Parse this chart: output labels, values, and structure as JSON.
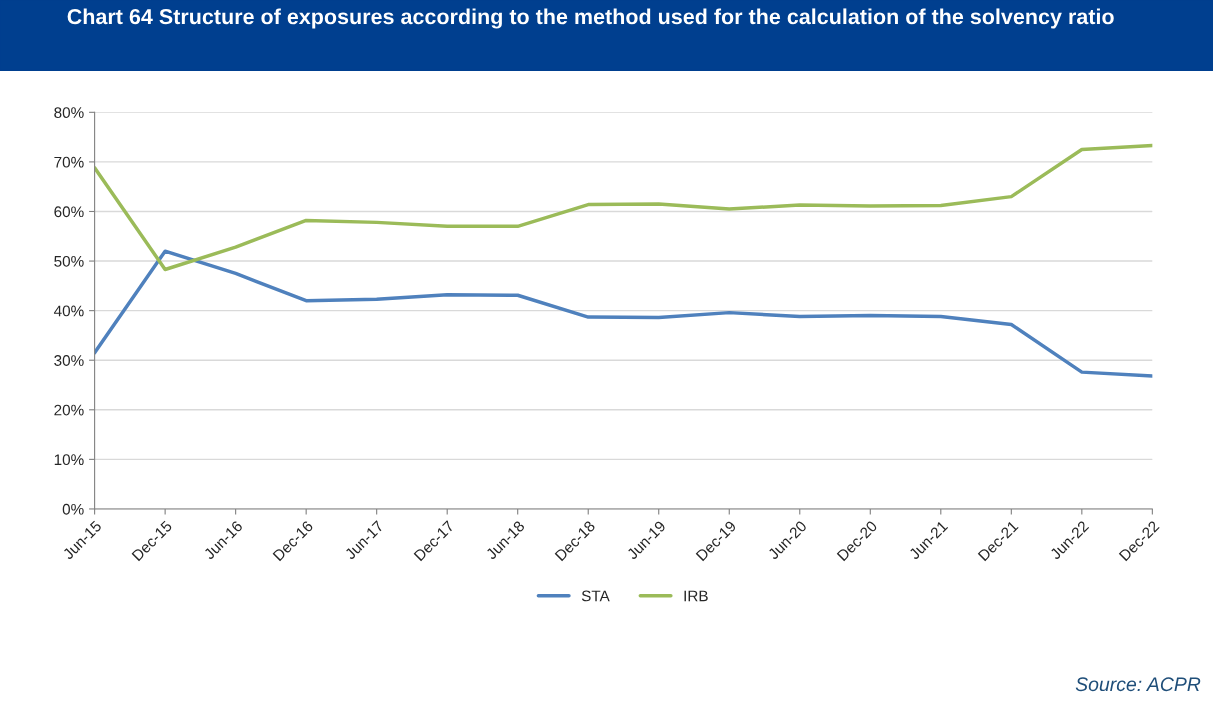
{
  "chart_data": {
    "type": "line",
    "title": "Chart 64 Structure of exposures according to the method used for the calculation of the solvency ratio",
    "categories": [
      "Jun-15",
      "Dec-15",
      "Jun-16",
      "Dec-16",
      "Jun-17",
      "Dec-17",
      "Jun-18",
      "Dec-18",
      "Jun-19",
      "Dec-19",
      "Jun-20",
      "Dec-20",
      "Jun-21",
      "Dec-21",
      "Jun-22",
      "Dec-22"
    ],
    "series": [
      {
        "name": "STA",
        "color": "#4f81bd",
        "values": [
          31.5,
          52.0,
          47.5,
          42.0,
          42.3,
          43.2,
          43.1,
          38.7,
          38.6,
          39.6,
          38.8,
          39.0,
          38.8,
          37.2,
          27.6,
          26.8
        ]
      },
      {
        "name": "IRB",
        "color": "#9bbb59",
        "values": [
          68.8,
          48.3,
          52.8,
          58.2,
          57.8,
          57.0,
          57.0,
          61.4,
          61.5,
          60.5,
          61.3,
          61.1,
          61.2,
          63.0,
          72.5,
          73.3
        ]
      }
    ],
    "ylim": [
      0,
      80
    ],
    "yticks": [
      {
        "value": 0,
        "label": "0%"
      },
      {
        "value": 10,
        "label": "10%"
      },
      {
        "value": 20,
        "label": "20%"
      },
      {
        "value": 30,
        "label": "30%"
      },
      {
        "value": 40,
        "label": "40%"
      },
      {
        "value": 50,
        "label": "50%"
      },
      {
        "value": 60,
        "label": "60%"
      },
      {
        "value": 70,
        "label": "70%"
      },
      {
        "value": 80,
        "label": "80%"
      }
    ],
    "grid": "y",
    "legend": "bottom",
    "marker": "none",
    "line_style": "solid",
    "annotations": [
      "Source: ACPR"
    ]
  }
}
